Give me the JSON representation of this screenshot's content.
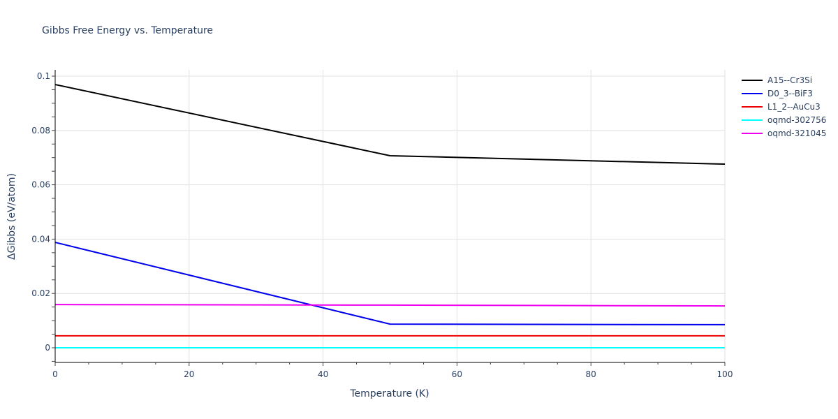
{
  "chart_data": {
    "type": "line",
    "title": "Gibbs Free Energy vs. Temperature",
    "xlabel": "Temperature (K)",
    "ylabel": "ΔGibbs (eV/atom)",
    "xlim": [
      0,
      100
    ],
    "ylim": [
      -0.0055,
      0.1025
    ],
    "x_ticks": [
      0,
      20,
      40,
      60,
      80,
      100
    ],
    "y_ticks": [
      0,
      0.02,
      0.04,
      0.06,
      0.08,
      0.1
    ],
    "y_tick_labels": [
      "0",
      "0.02",
      "0.04",
      "0.06",
      "0.08",
      "0.1"
    ],
    "grid": true,
    "legend_position": "right",
    "x": [
      0,
      50,
      100
    ],
    "series": [
      {
        "name": "A15--Cr3Si",
        "color": "#000000",
        "values": [
          0.0969,
          0.0707,
          0.0676
        ]
      },
      {
        "name": "D0_3--BiF3",
        "color": "#0000ee",
        "values": [
          0.0388,
          0.0087,
          0.0085
        ]
      },
      {
        "name": "L1_2--AuCu3",
        "color": "#ee0000",
        "values": [
          0.0044,
          0.0044,
          0.0044
        ]
      },
      {
        "name": "oqmd-302756",
        "color": "#00ffff",
        "values": [
          0.0,
          0.0,
          0.0
        ]
      },
      {
        "name": "oqmd-321045",
        "color": "#ee00ee",
        "values": [
          0.0159,
          0.0157,
          0.0154
        ]
      }
    ]
  }
}
